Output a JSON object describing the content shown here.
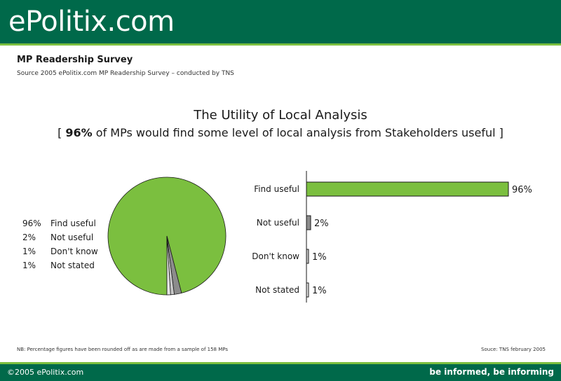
{
  "header": {
    "brand": "ePolitix.com"
  },
  "survey": {
    "title": "MP Readership Survey",
    "source": "Source 2005 ePolitix.com MP Readership Survey – conducted by TNS"
  },
  "chart_title": "The Utility of Local Analysis",
  "chart_subtitle": {
    "open": "[ ",
    "bold": "96%",
    "rest": " of MPs would find some level of local analysis from Stakeholders useful ]"
  },
  "legend": [
    {
      "pct": "96%",
      "label": "Find useful"
    },
    {
      "pct": "2%",
      "label": "Not useful"
    },
    {
      "pct": "1%",
      "label": "Don't know"
    },
    {
      "pct": "1%",
      "label": "Not stated"
    }
  ],
  "chart_data": [
    {
      "type": "pie",
      "categories": [
        "Find useful",
        "Not useful",
        "Don't know",
        "Not stated"
      ],
      "values": [
        96,
        2,
        1,
        1
      ],
      "colors": [
        "#7bbf3f",
        "#8c8c8c",
        "#c8c8c8",
        "#e6e6e6"
      ]
    },
    {
      "type": "bar",
      "orientation": "horizontal",
      "categories": [
        "Find useful",
        "Not useful",
        "Don't know",
        "Not stated"
      ],
      "values": [
        96,
        2,
        1,
        1
      ],
      "value_labels": [
        "96%",
        "2%",
        "1%",
        "1%"
      ],
      "colors": [
        "#7bbf3f",
        "#8c8c8c",
        "#c8c8c8",
        "#e6e6e6"
      ],
      "xlim": [
        0,
        100
      ]
    }
  ],
  "footnotes": {
    "note": "NB: Percentage figures have been rounded off as are made from a sample of 158 MPs",
    "credit": "Souce: TNS february 2005"
  },
  "footer": {
    "copyright": "©2005 ePolitix.com",
    "tagline": "be informed, be informing"
  }
}
